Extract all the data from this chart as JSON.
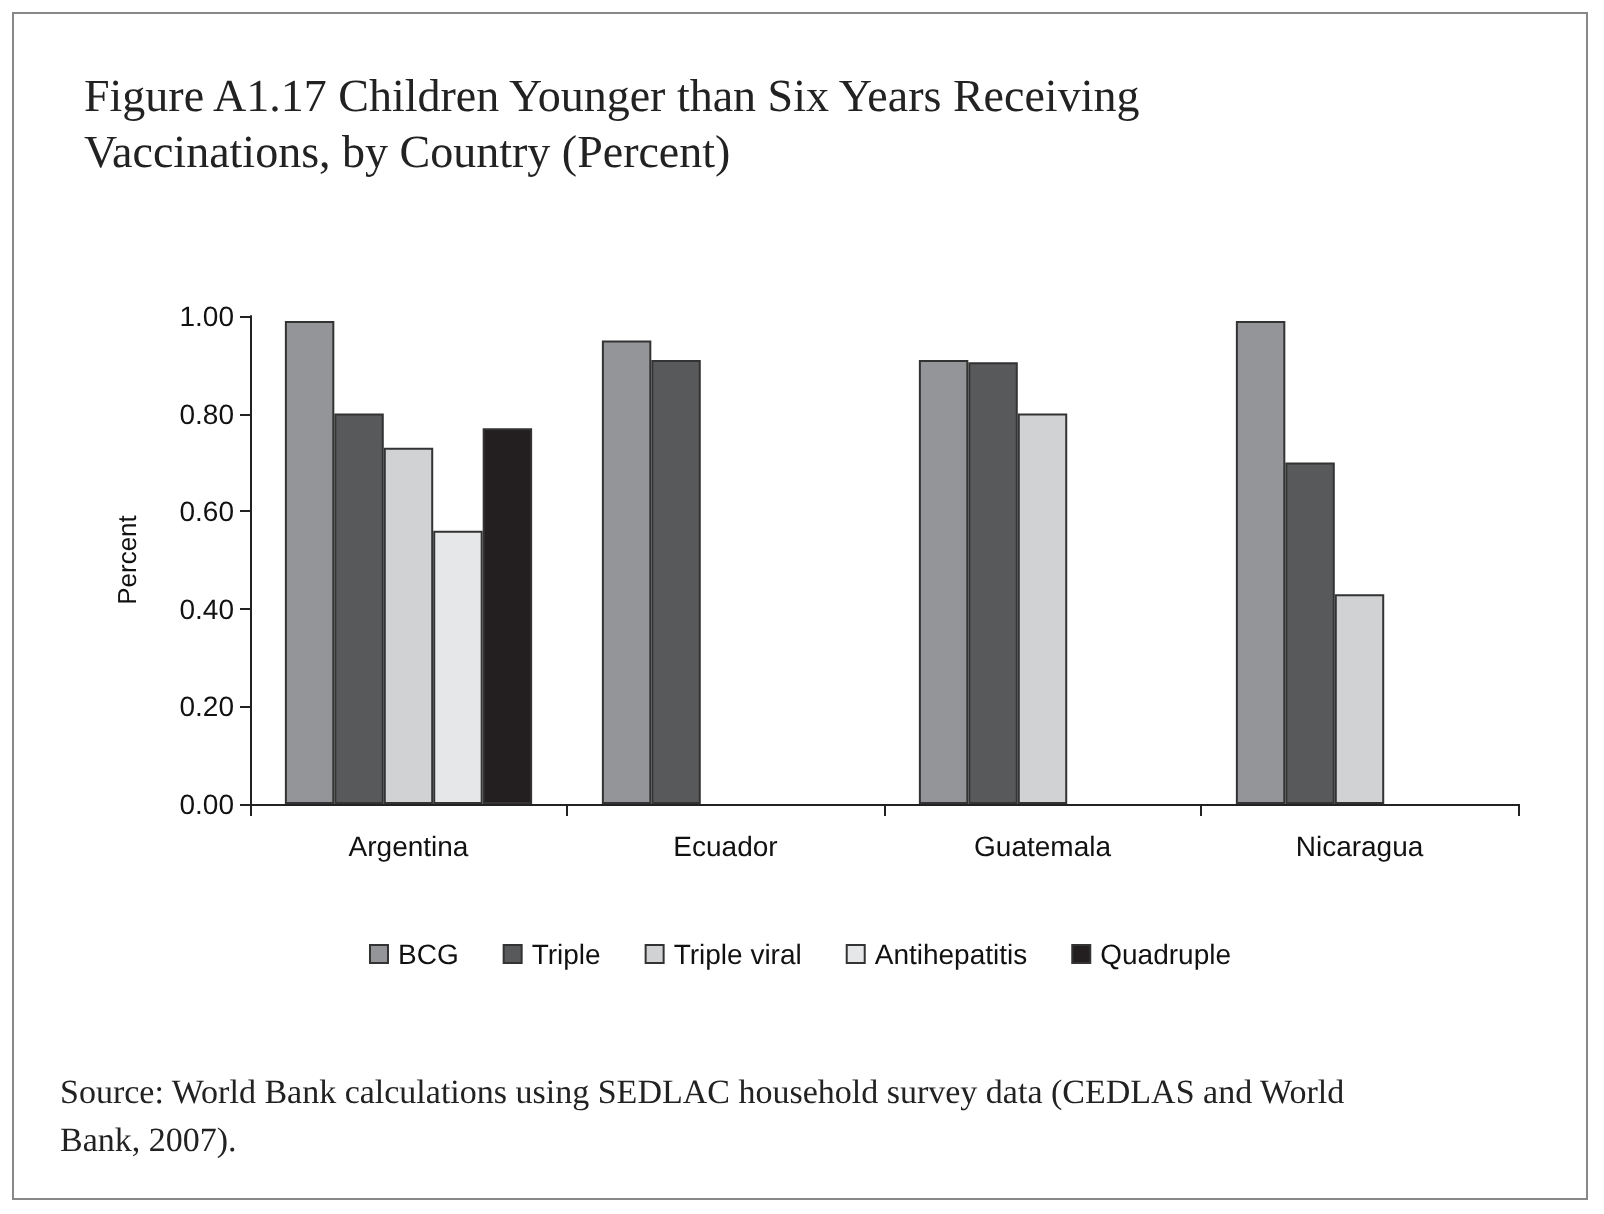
{
  "chart_data": {
    "type": "bar",
    "title": "Figure A1.17 Children Younger than Six Years Receiving Vaccinations, by Country (Percent)",
    "ylabel": "Percent",
    "categories": [
      "Argentina",
      "Ecuador",
      "Guatemala",
      "Nicaragua"
    ],
    "series": [
      {
        "name": "BCG",
        "color": "#939598",
        "values": [
          0.99,
          0.95,
          0.91,
          0.99
        ]
      },
      {
        "name": "Triple",
        "color": "#58595b",
        "values": [
          0.8,
          0.91,
          0.905,
          0.7
        ]
      },
      {
        "name": "Triple viral",
        "color": "#d1d2d4",
        "values": [
          0.73,
          null,
          0.8,
          0.43
        ]
      },
      {
        "name": "Antihepatitis",
        "color": "#e6e7e8",
        "values": [
          0.56,
          null,
          null,
          null
        ]
      },
      {
        "name": "Quadruple",
        "color": "#231f20",
        "values": [
          0.77,
          null,
          null,
          null
        ]
      }
    ],
    "ylim": [
      0,
      1
    ],
    "yticks": [
      {
        "value": 0,
        "label": "0.00"
      },
      {
        "value": 0.2,
        "label": "0.20"
      },
      {
        "value": 0.4,
        "label": "0.40"
      },
      {
        "value": 0.6,
        "label": "0.60"
      },
      {
        "value": 0.8,
        "label": "0.80"
      },
      {
        "value": 1,
        "label": "1.00"
      }
    ],
    "grid": false,
    "legend": "bottom",
    "annotations": [
      "Source: World Bank calculations using SEDLAC household survey data (CEDLAS and World Bank, 2007)."
    ]
  }
}
